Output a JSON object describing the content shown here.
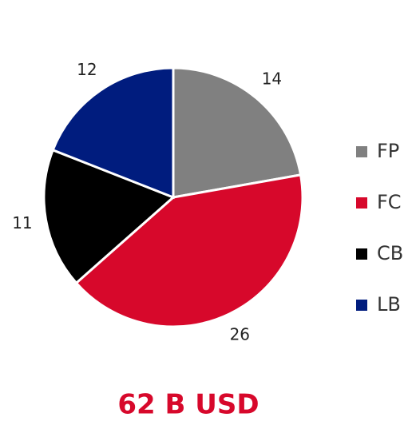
{
  "chart_data": {
    "type": "pie",
    "categories": [
      "FP",
      "FC",
      "CB",
      "LB"
    ],
    "values": [
      14,
      26,
      11,
      12
    ],
    "colors": [
      "#808080",
      "#d7082b",
      "#000000",
      "#001c7e"
    ],
    "legend": "right",
    "caption": "62 B USD"
  }
}
